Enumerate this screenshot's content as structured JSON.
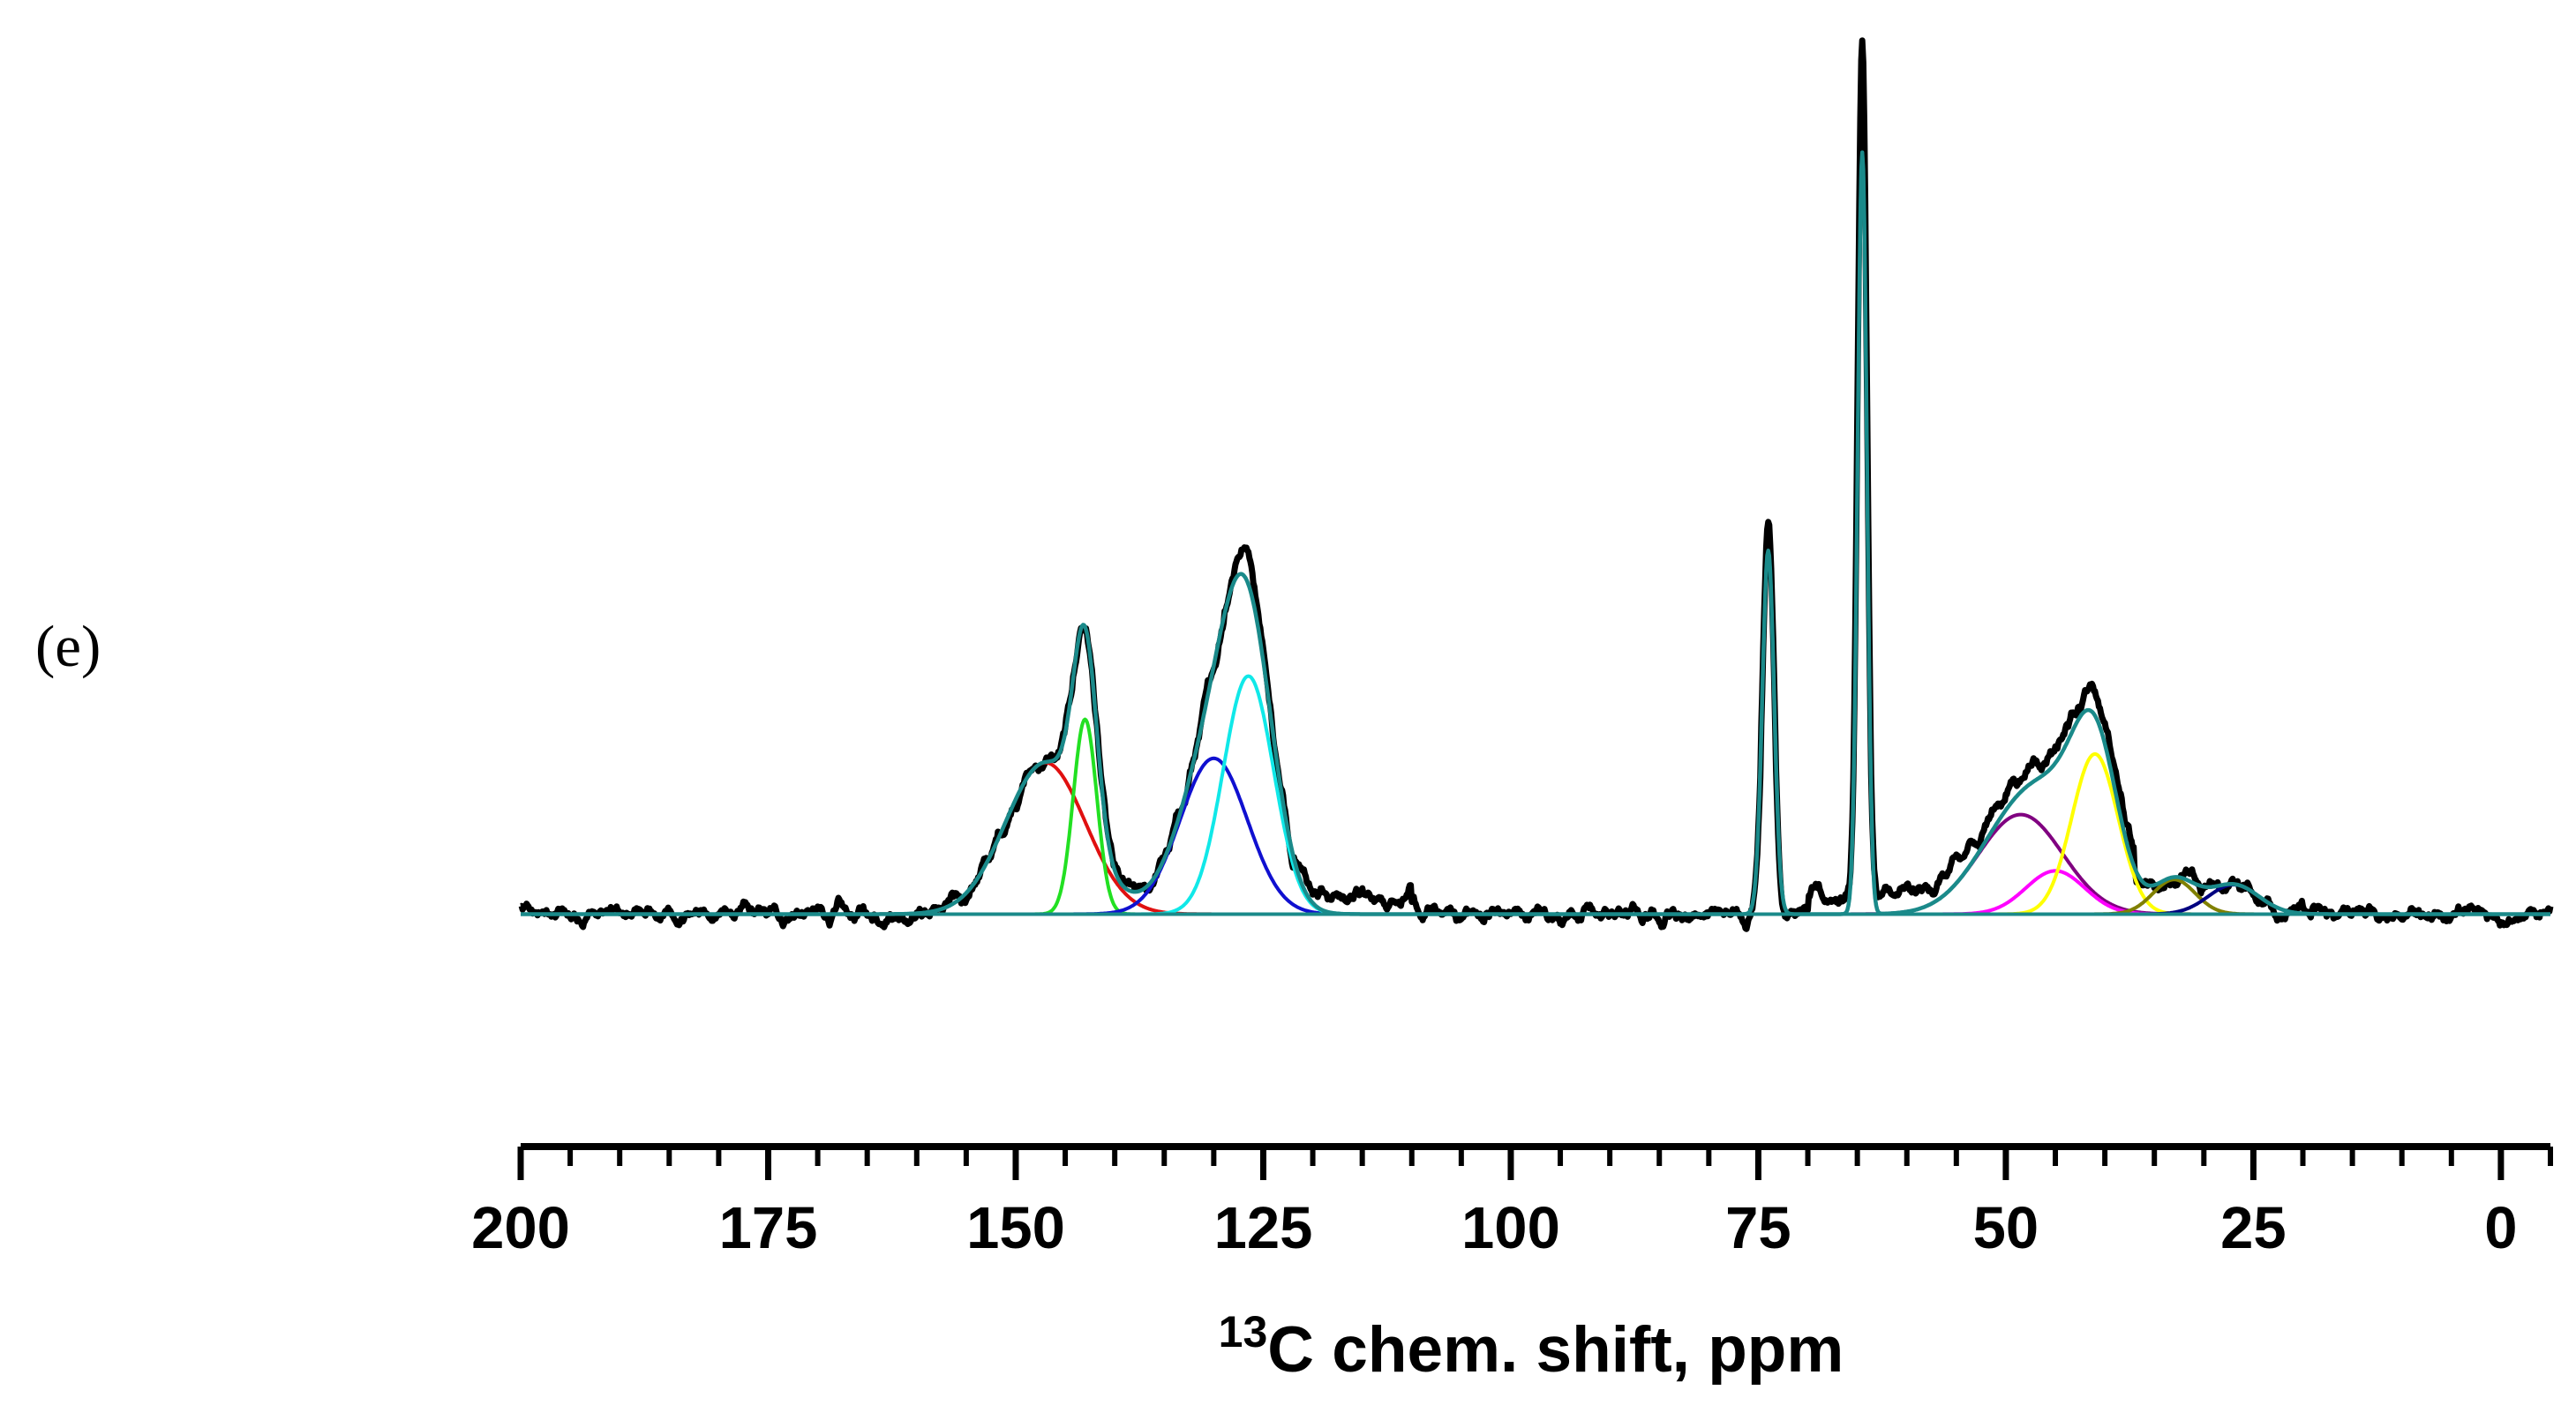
{
  "panel_label": "(e)",
  "chart_data": {
    "type": "line",
    "xlabel_sup": "13",
    "xlabel_main": "C chem. shift, ppm",
    "xlim": [
      200,
      -5
    ],
    "x_reversed": true,
    "xticks": [
      200,
      175,
      150,
      125,
      100,
      75,
      50,
      25,
      0
    ],
    "minor_tick_step": 5,
    "ylim": [
      -0.08,
      1.0
    ],
    "baseline": 0,
    "grid": false,
    "legend": "none",
    "series": [
      {
        "key": "experimental",
        "color": "#000000",
        "kind": "experimental"
      },
      {
        "key": "envelope",
        "color": "#1a8a8a",
        "kind": "envelope"
      },
      {
        "key": "p147",
        "color": "#e01010",
        "kind": "gaussian",
        "center": 147.0,
        "fwhm": 9.5,
        "height": 0.175
      },
      {
        "key": "p143",
        "color": "#22e022",
        "kind": "gaussian",
        "center": 143.0,
        "fwhm": 2.8,
        "height": 0.225
      },
      {
        "key": "p130",
        "color": "#1010d0",
        "kind": "gaussian",
        "center": 130.0,
        "fwhm": 8.0,
        "height": 0.18
      },
      {
        "key": "p126",
        "color": "#10e8e8",
        "kind": "gaussian",
        "center": 126.5,
        "fwhm": 6.0,
        "height": 0.275
      },
      {
        "key": "p74",
        "color": "#1a8a8a",
        "kind": "gaussian",
        "center": 74.0,
        "fwhm": 1.4,
        "height": 0.42
      },
      {
        "key": "p64",
        "color": "#1a8a8a",
        "kind": "gaussian",
        "center": 64.5,
        "fwhm": 1.1,
        "height": 0.88
      },
      {
        "key": "p48",
        "color": "#800080",
        "kind": "gaussian",
        "center": 48.5,
        "fwhm": 10.0,
        "height": 0.115
      },
      {
        "key": "p45",
        "color": "#ff00ff",
        "kind": "gaussian",
        "center": 45.0,
        "fwhm": 7.0,
        "height": 0.05
      },
      {
        "key": "p41",
        "color": "#ffff00",
        "kind": "gaussian",
        "center": 41.0,
        "fwhm": 5.5,
        "height": 0.185
      },
      {
        "key": "p33",
        "color": "#808000",
        "kind": "gaussian",
        "center": 33.0,
        "fwhm": 5.0,
        "height": 0.04
      },
      {
        "key": "p27",
        "color": "#000080",
        "kind": "gaussian",
        "center": 27.0,
        "fwhm": 6.0,
        "height": 0.034
      },
      {
        "key": "baseline",
        "color": "#008000",
        "kind": "flat",
        "value": 0
      }
    ]
  }
}
